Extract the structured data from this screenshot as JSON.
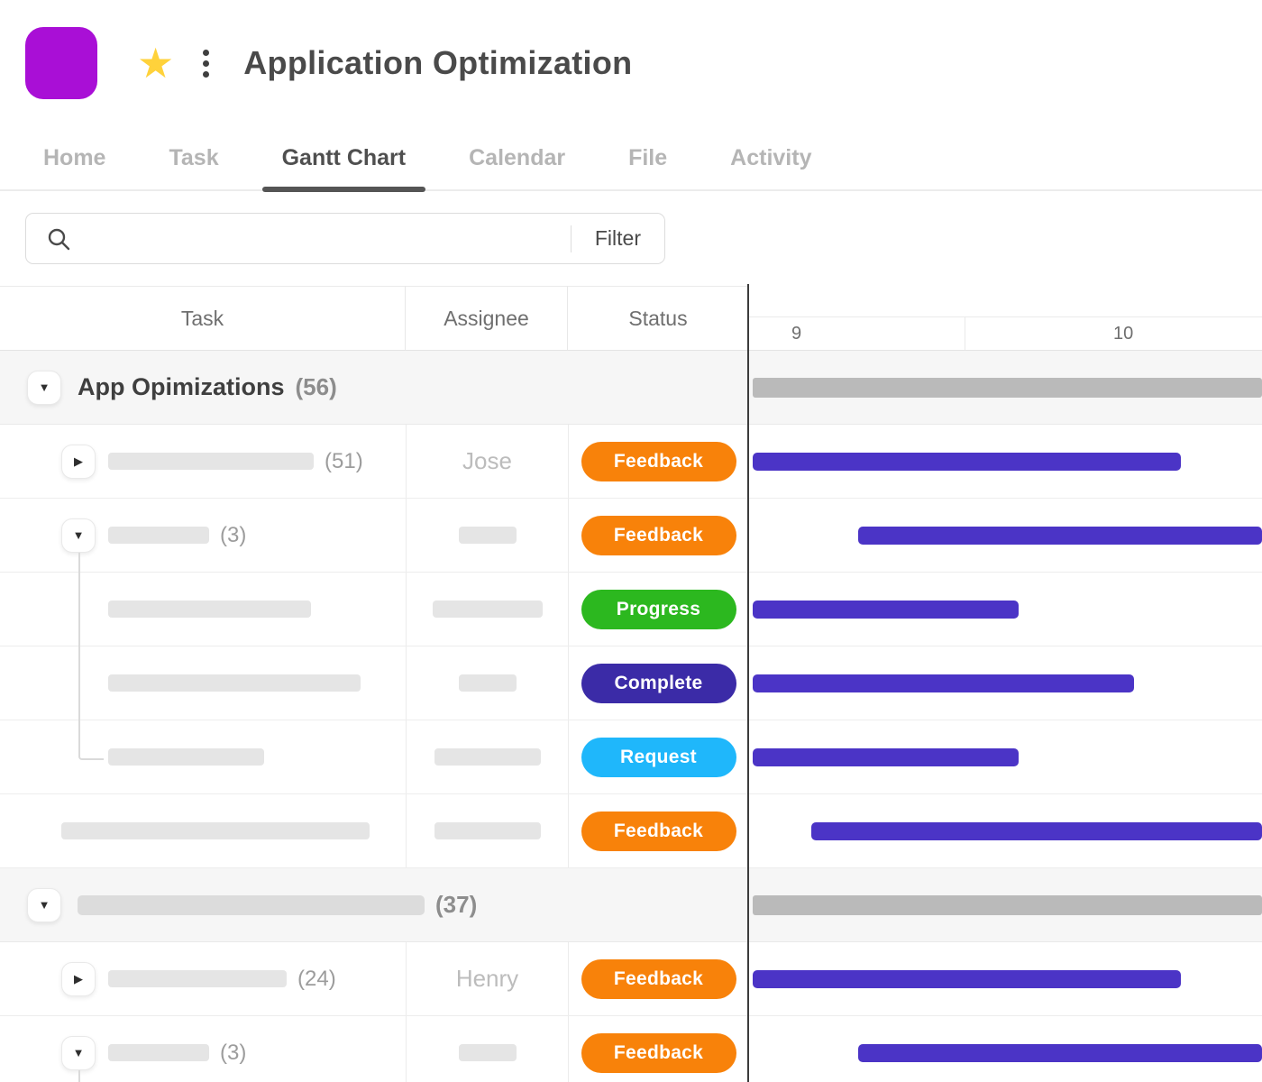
{
  "header": {
    "title": "Application Optimization"
  },
  "tabs": {
    "items": [
      {
        "label": "Home"
      },
      {
        "label": "Task"
      },
      {
        "label": "Gantt Chart"
      },
      {
        "label": "Calendar"
      },
      {
        "label": "File"
      },
      {
        "label": "Activity"
      }
    ],
    "active_index": 2
  },
  "search": {
    "filter_label": "Filter"
  },
  "table": {
    "columns": [
      "Task",
      "Assignee",
      "Status"
    ],
    "timeline_ticks": [
      "9",
      "10"
    ]
  },
  "colors": {
    "task_bar": "#4B34C6",
    "summary_bar": "#BABABA"
  },
  "status_colors": {
    "Feedback": "#F8820A",
    "Progress": "#2CB81F",
    "Complete": "#3B2BA7",
    "Request": "#1FB7FB"
  },
  "rows": [
    {
      "kind": "group",
      "title": "App Opimizations",
      "count": "(56)",
      "bar": {
        "start": 0.9,
        "end": 100,
        "color": "summary_bar"
      }
    },
    {
      "kind": "task",
      "count": "(51)",
      "assignee": "Jose",
      "status": "Feedback",
      "bar": {
        "start": 0.9,
        "end": 84.2,
        "color": "task_bar"
      }
    },
    {
      "kind": "task",
      "count": "(3)",
      "status": "Feedback",
      "bar": {
        "start": 21.4,
        "end": 100,
        "color": "task_bar"
      }
    },
    {
      "kind": "task",
      "status": "Progress",
      "bar": {
        "start": 0.9,
        "end": 52.6,
        "color": "task_bar"
      }
    },
    {
      "kind": "task",
      "status": "Complete",
      "bar": {
        "start": 0.9,
        "end": 75.1,
        "color": "task_bar"
      }
    },
    {
      "kind": "task",
      "status": "Request",
      "bar": {
        "start": 0.9,
        "end": 52.6,
        "color": "task_bar"
      }
    },
    {
      "kind": "task",
      "status": "Feedback",
      "bar": {
        "start": 12.3,
        "end": 100,
        "color": "task_bar"
      }
    },
    {
      "kind": "group",
      "count": "(37)",
      "bar": {
        "start": 0.9,
        "end": 100,
        "color": "summary_bar"
      }
    },
    {
      "kind": "task",
      "count": "(24)",
      "assignee": "Henry",
      "status": "Feedback",
      "bar": {
        "start": 0.9,
        "end": 84.2,
        "color": "task_bar"
      }
    },
    {
      "kind": "task",
      "count": "(3)",
      "status": "Feedback",
      "bar": {
        "start": 21.4,
        "end": 100,
        "color": "task_bar"
      }
    }
  ]
}
